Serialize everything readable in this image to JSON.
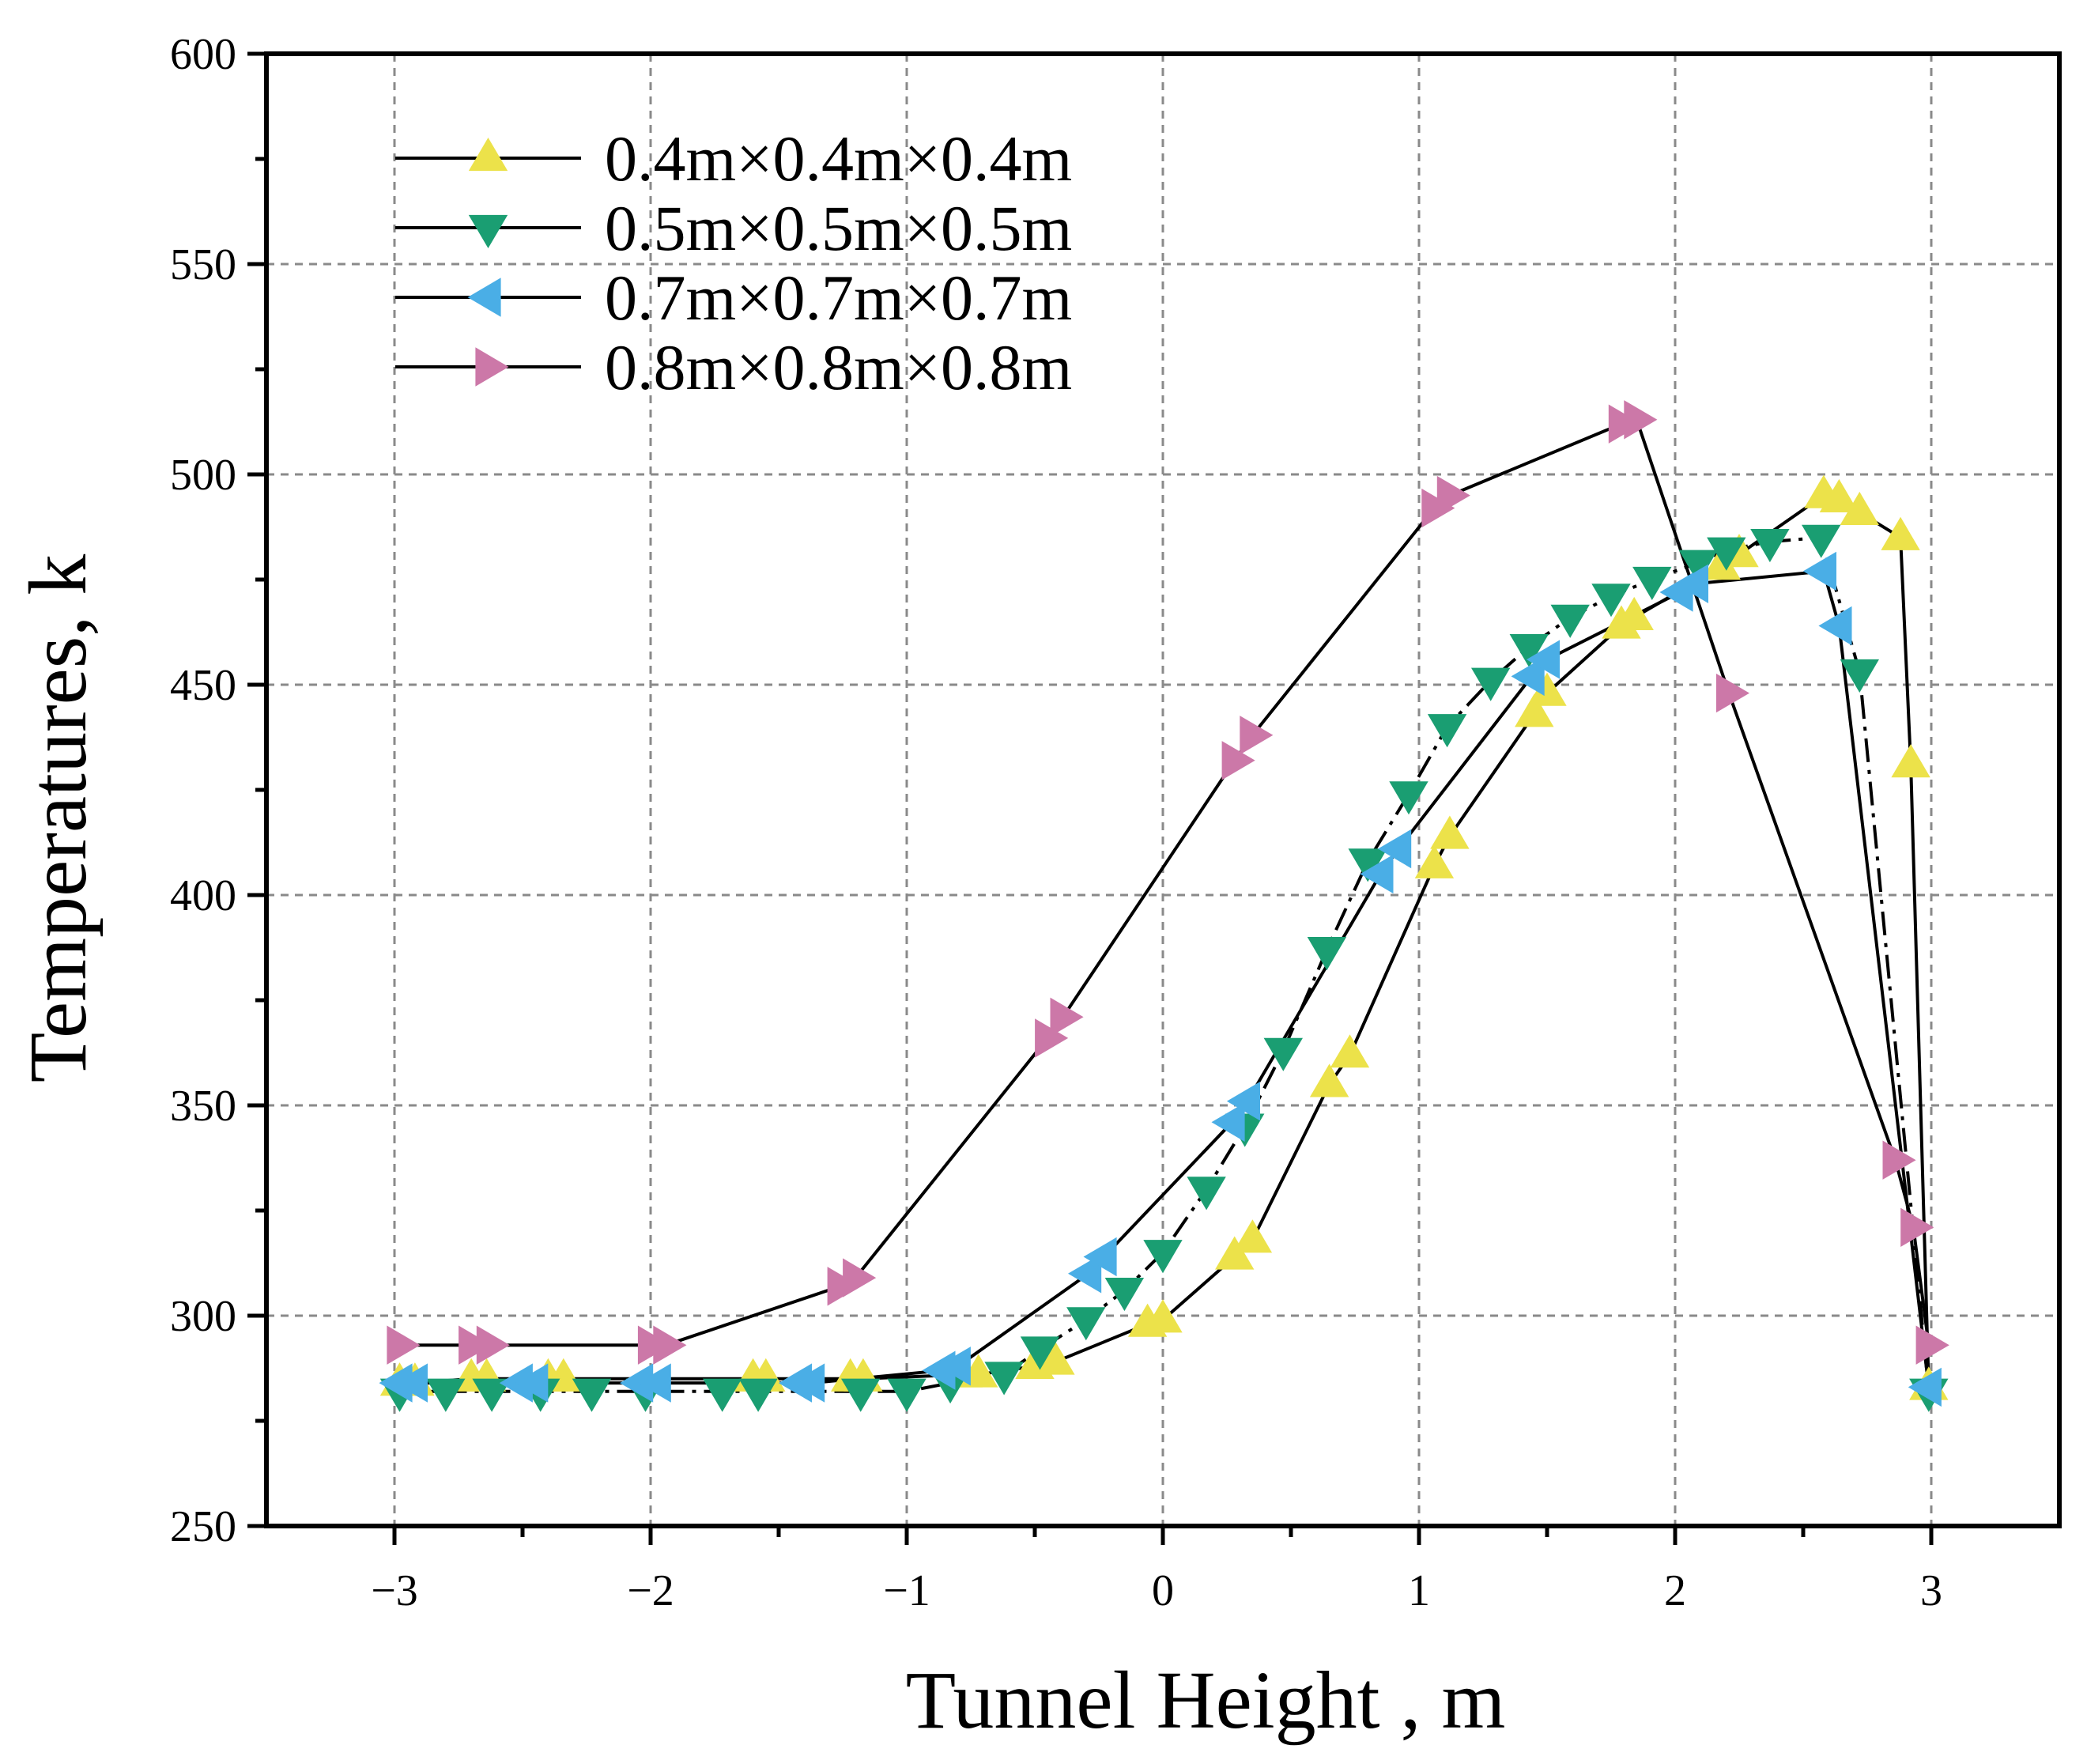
{
  "chart_data": {
    "type": "line",
    "title": "",
    "xlabel": "Tunnel Height , m",
    "ylabel": "Temperatures, k",
    "xlim": [
      -3.5,
      3.5
    ],
    "ylim": [
      250,
      600
    ],
    "xticks": [
      -3,
      -2,
      -1,
      0,
      1,
      2,
      3
    ],
    "xtick_labels": [
      "−3",
      "−2",
      "−1",
      "0",
      "1",
      "2",
      "3"
    ],
    "yticks": [
      250,
      300,
      350,
      400,
      450,
      500,
      550,
      600
    ],
    "ytick_labels": [
      "250",
      "300",
      "350",
      "400",
      "450",
      "500",
      "550",
      "600"
    ],
    "grid": true,
    "legend_position": "top-left",
    "series": [
      {
        "name": "0.4m×0.4m×0.4m",
        "marker": "triangle-up",
        "color": "#ECE24A",
        "line_style": "solid",
        "x": [
          -2.98,
          -2.92,
          -2.7,
          -2.64,
          -2.4,
          -2.34,
          -1.6,
          -1.55,
          -1.22,
          -1.17,
          -0.78,
          -0.72,
          -0.5,
          -0.42,
          -0.06,
          0.0,
          0.28,
          0.35,
          0.65,
          0.73,
          1.06,
          1.12,
          1.45,
          1.5,
          1.79,
          1.84,
          2.18,
          2.25,
          2.58,
          2.64,
          2.72,
          2.88,
          2.92,
          2.99
        ],
        "y": [
          284,
          284,
          285,
          285,
          285,
          285,
          285,
          285,
          285,
          285,
          286,
          286,
          288,
          289,
          298,
          299,
          314,
          318,
          355,
          362,
          407,
          414,
          443,
          448,
          464,
          466,
          478,
          481,
          495,
          494,
          491,
          485,
          431,
          283
        ]
      },
      {
        "name": "0.5m×0.5m×0.5m",
        "marker": "triangle-down",
        "color": "#1A9E72",
        "line_style": "dash-dot",
        "x": [
          -2.98,
          -2.8,
          -2.62,
          -2.43,
          -2.23,
          -2.02,
          -1.72,
          -1.58,
          -1.18,
          -1.0,
          -0.83,
          -0.62,
          -0.48,
          -0.3,
          -0.15,
          0.0,
          0.17,
          0.32,
          0.47,
          0.64,
          0.8,
          0.96,
          1.11,
          1.28,
          1.43,
          1.59,
          1.75,
          1.91,
          2.09,
          2.2,
          2.37,
          2.57,
          2.72,
          2.99
        ],
        "y": [
          282,
          282,
          282,
          282,
          282,
          282,
          282,
          282,
          282,
          282,
          284,
          286,
          292,
          299,
          306,
          315,
          330,
          345,
          363,
          387,
          408,
          424,
          440,
          451,
          459,
          466,
          471,
          475,
          479,
          482,
          484,
          485,
          453,
          282
        ]
      },
      {
        "name": "0.7m×0.7m×0.7m",
        "marker": "triangle-left",
        "color": "#4AAEE6",
        "line_style": "solid",
        "x": [
          -2.98,
          -2.92,
          -2.51,
          -2.45,
          -2.04,
          -1.97,
          -1.42,
          -1.37,
          -0.86,
          -0.8,
          -0.29,
          -0.23,
          0.27,
          0.33,
          0.85,
          0.92,
          1.44,
          1.5,
          2.02,
          2.08,
          2.58,
          2.64,
          2.99
        ],
        "y": [
          284,
          284,
          284,
          284,
          284,
          284,
          284,
          284,
          287,
          288,
          310,
          314,
          346,
          351,
          405,
          411,
          452,
          456,
          472,
          474,
          477,
          464,
          283
        ]
      },
      {
        "name": "0.8m×0.8m×0.8m",
        "marker": "triangle-right",
        "color": "#CC78A8",
        "line_style": "solid",
        "x": [
          -2.98,
          -2.7,
          -2.63,
          -2.0,
          -1.94,
          -1.26,
          -1.2,
          -0.45,
          -0.39,
          0.28,
          0.35,
          1.06,
          1.12,
          1.79,
          1.85,
          2.21,
          2.86,
          2.93,
          2.99
        ],
        "y": [
          293,
          293,
          293,
          293,
          293,
          307,
          309,
          366,
          371,
          432,
          438,
          492,
          495,
          512,
          513,
          448,
          337,
          321,
          293
        ]
      }
    ]
  }
}
